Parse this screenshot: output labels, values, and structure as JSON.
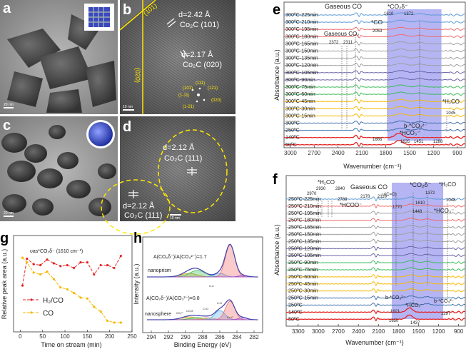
{
  "panel_labels": {
    "a": "a",
    "b": "b",
    "c": "c",
    "d": "d",
    "e": "e",
    "f": "f",
    "g": "g",
    "h": "h"
  },
  "tem": {
    "a": {
      "scale_bar": "20 nm"
    },
    "b": {
      "scale_bar": "10 nm",
      "d1": "d=2.42 Å",
      "plane1": "Co₂C (101)",
      "d2": "d=2.17 Å",
      "plane2": "Co₂C (020)",
      "edge1": "(101)",
      "edge2": "(020)",
      "fft": [
        "(101)",
        "(111)",
        "(121)",
        "(1-11)",
        "(020)",
        "(1-21)"
      ]
    },
    "c": {
      "scale_bar": "20 nm"
    },
    "d": {
      "scale_bar": "10 nm",
      "d1": "d=2.12 Å",
      "plane1": "Co₂C (111)",
      "d2": "d=2.12 Å",
      "plane2": "Co₂C (111)"
    }
  },
  "chart_data": [
    {
      "id": "e",
      "type": "line",
      "xlabel": "Wavenumber (cm⁻¹)",
      "ylabel": "Absorbance (a.u.)",
      "xlim": [
        3080,
        800
      ],
      "xticks": [
        3000,
        2700,
        2400,
        2100,
        1800,
        1500,
        1200,
        900
      ],
      "series": [
        {
          "name": "300ºC-225min",
          "color": "#5b9bd5"
        },
        {
          "name": "300ºC-210min",
          "color": "#5b9bd5"
        },
        {
          "name": "300ºC-195min",
          "color": "#f26b6b"
        },
        {
          "name": "300ºC-180min",
          "color": "#f26b6b"
        },
        {
          "name": "300ºC-165min",
          "color": "#a0a0a0"
        },
        {
          "name": "300ºC-150min",
          "color": "#a0a0a0"
        },
        {
          "name": "300ºC-135min",
          "color": "#a0a0a0"
        },
        {
          "name": "300ºC-120min",
          "color": "#a0a0a0"
        },
        {
          "name": "300ºC-105min",
          "color": "#6a64a8"
        },
        {
          "name": "300ºC-90min",
          "color": "#6a64a8"
        },
        {
          "name": "300ºC-75min",
          "color": "#3dbb5a"
        },
        {
          "name": "300ºC-60min",
          "color": "#3dbb5a"
        },
        {
          "name": "300ºC-45min",
          "color": "#f5b800"
        },
        {
          "name": "300ºC-30min",
          "color": "#f5b800"
        },
        {
          "name": "300ºC-15min",
          "color": "#f5b800"
        },
        {
          "name": "300ºC",
          "color": "#3d6fa8"
        },
        {
          "name": "250ºC",
          "color": "#3d6fa8"
        },
        {
          "name": "140ºC",
          "color": "#e52222"
        },
        {
          "name": "50ºC",
          "color": "#e52222"
        }
      ],
      "shaded_range": [
        1780,
        1100
      ],
      "annotations": [
        "Gaseous CO",
        "*CO₂δ⁻",
        "1610",
        "1372",
        "*CO",
        "2053",
        "Gaseous CO₂",
        "2372",
        "2311",
        "*H₂CO",
        "1045",
        "b-*CO₃²⁻",
        "*HCO₃⁻",
        "1666",
        "1635",
        "1451",
        "1288"
      ]
    },
    {
      "id": "f",
      "type": "line",
      "xlabel": "Wavenumber (cm⁻¹)",
      "ylabel": "Absorbance (a.u.)",
      "xlim": [
        3480,
        800
      ],
      "xticks": [
        3300,
        3000,
        2700,
        2400,
        2100,
        1800,
        1500,
        1200,
        900
      ],
      "series": [
        {
          "name": "250ºC-225min",
          "color": "#5b9bd5"
        },
        {
          "name": "250ºC-210min",
          "color": "#f26b6b"
        },
        {
          "name": "250ºC-195min",
          "color": "#a0a0a0"
        },
        {
          "name": "250ºC-180min",
          "color": "#f26b6b"
        },
        {
          "name": "250ºC-165min",
          "color": "#a0a0a0"
        },
        {
          "name": "250ºC-150min",
          "color": "#a0a0a0"
        },
        {
          "name": "250ºC-135min",
          "color": "#a0a0a0"
        },
        {
          "name": "250ºC-120min",
          "color": "#6a64a8"
        },
        {
          "name": "250ºC-105min",
          "color": "#6a64a8"
        },
        {
          "name": "250ºC-90min",
          "color": "#3dbb5a"
        },
        {
          "name": "250ºC-75min",
          "color": "#3dbb5a"
        },
        {
          "name": "250ºC-60min",
          "color": "#f5b800"
        },
        {
          "name": "250ºC-45min",
          "color": "#f5b800"
        },
        {
          "name": "250ºC-30min",
          "color": "#f5b800"
        },
        {
          "name": "250ºC-15min",
          "color": "#3d6fa8"
        },
        {
          "name": "250ºC",
          "color": "#3d6fa8"
        },
        {
          "name": "140ºC",
          "color": "#e52222"
        },
        {
          "name": "50ºC",
          "color": "#e52222"
        }
      ],
      "shaded_range": [
        1900,
        1130
      ],
      "annotations": [
        "*H₂CO",
        "2930",
        "2840",
        "2970",
        "2788",
        "*HCOO⁻",
        "Gaseous CO",
        "2178",
        "2110",
        "υ(C=O)",
        "1770",
        "1610",
        "*CO₂δ⁻",
        "1372",
        "*H₃CO",
        "1048",
        "1448",
        "*HCO₃⁻",
        "b-*CO₃²⁻",
        "1621",
        "*HCO₃⁻",
        "b-*CO₃²⁻",
        "1297",
        "1650",
        "1437"
      ]
    },
    {
      "id": "g",
      "type": "line",
      "title": "υas*CO₂δ⁻ (1610 cm⁻¹)",
      "xlabel": "Time on stream (min)",
      "ylabel": "Relative peak area (a.u.)",
      "xlim": [
        -15,
        250
      ],
      "ylim": [
        -0.02,
        1.02
      ],
      "xticks": [
        0,
        50,
        100,
        150,
        200,
        250
      ],
      "legend": "center-left",
      "x": [
        5,
        15,
        30,
        45,
        60,
        75,
        90,
        105,
        120,
        135,
        150,
        165,
        180,
        195,
        210,
        225
      ],
      "series": [
        {
          "name": "H₂/CO",
          "color": "#e52222",
          "values": [
            0.48,
            0.77,
            0.71,
            0.7,
            0.76,
            0.72,
            0.69,
            0.7,
            0.67,
            0.73,
            0.73,
            0.6,
            0.7,
            0.7,
            0.67,
            0.8
          ]
        },
        {
          "name": "CO",
          "color": "#f5b800",
          "values": [
            0.78,
            0.73,
            0.62,
            0.6,
            0.63,
            0.55,
            0.46,
            0.44,
            0.4,
            0.35,
            0.34,
            0.25,
            0.2,
            0.1,
            0.08,
            0.08
          ]
        }
      ]
    },
    {
      "id": "h",
      "type": "line",
      "xlabel": "Binding Energy (eV)",
      "ylabel": "Intensity (a.u.)",
      "xlim": [
        295,
        281
      ],
      "xticks": [
        294,
        292,
        290,
        288,
        286,
        284,
        282
      ],
      "spectra": [
        {
          "name": "nanoprism",
          "ratio_label": "A(CO₂δ⁻)/A(CO₃²⁻)=1.7"
        },
        {
          "name": "nanosphere",
          "ratio_label": "A(CO₂δ⁻)/A(CO₃²⁻)=0.8"
        }
      ],
      "components": [
        {
          "label": "CO₃²⁻",
          "center": 289.6,
          "color": "#d4a020"
        },
        {
          "label": "CO₂δ⁻",
          "center": 288.6,
          "color": "#3dbb5a"
        },
        {
          "label": "C=O",
          "center": 287.4,
          "color": "#e8a070"
        },
        {
          "label": "C-O",
          "center": 286.0,
          "color": "#5ab0f0"
        },
        {
          "label": "C-C",
          "center": 284.8,
          "color": "#f26b6b"
        },
        {
          "label": "Co-C",
          "center": 283.3,
          "color": "#a050d0"
        }
      ]
    }
  ]
}
